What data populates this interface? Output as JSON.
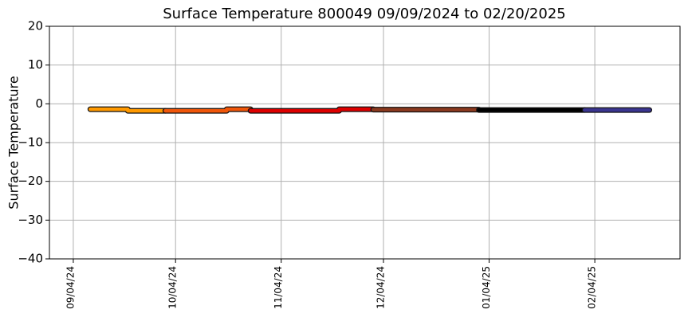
{
  "chart_data": {
    "type": "line",
    "title": "Surface Temperature 800049  09/09/2024 to 02/20/2025",
    "y_label": "Surface Temperature",
    "xlim": [
      "2024-08-28",
      "2025-03-01"
    ],
    "xticks": [
      {
        "value": "2024-09-04",
        "label": "09/04/24"
      },
      {
        "value": "2024-10-04",
        "label": "10/04/24"
      },
      {
        "value": "2024-11-04",
        "label": "11/04/24"
      },
      {
        "value": "2024-12-04",
        "label": "12/04/24"
      },
      {
        "value": "2025-01-04",
        "label": "01/04/25"
      },
      {
        "value": "2025-02-04",
        "label": "02/04/25"
      }
    ],
    "ylim": [
      -40,
      20
    ],
    "yticks": [
      {
        "value": -40,
        "label": "−40"
      },
      {
        "value": -30,
        "label": "−30"
      },
      {
        "value": -20,
        "label": "−20"
      },
      {
        "value": -10,
        "label": "−10"
      },
      0,
      10,
      20
    ],
    "grid": true,
    "series": [
      {
        "color": "#ff9900",
        "x": [
          "2024-09-09",
          "2024-09-20",
          "2024-09-20",
          "2024-10-01"
        ],
        "values": [
          -1.4,
          -1.4,
          -1.8,
          -1.8
        ]
      },
      {
        "color": "#f0560a",
        "x": [
          "2024-10-01",
          "2024-10-19",
          "2024-10-19",
          "2024-10-26"
        ],
        "values": [
          -1.8,
          -1.8,
          -1.4,
          -1.4
        ]
      },
      {
        "color": "#dd0000",
        "x": [
          "2024-10-26",
          "2024-11-21",
          "2024-11-21",
          "2024-12-01"
        ],
        "values": [
          -1.8,
          -1.8,
          -1.4,
          -1.4
        ]
      },
      {
        "color": "#8b3a1f",
        "x": [
          "2024-12-01",
          "2025-01-01"
        ],
        "values": [
          -1.5,
          -1.5
        ]
      },
      {
        "color": "#000000",
        "x": [
          "2025-01-01",
          "2025-02-01"
        ],
        "values": [
          -1.6,
          -1.6
        ]
      },
      {
        "color": "#3a3590",
        "x": [
          "2025-02-01",
          "2025-02-20"
        ],
        "values": [
          -1.6,
          -1.6
        ]
      }
    ]
  }
}
